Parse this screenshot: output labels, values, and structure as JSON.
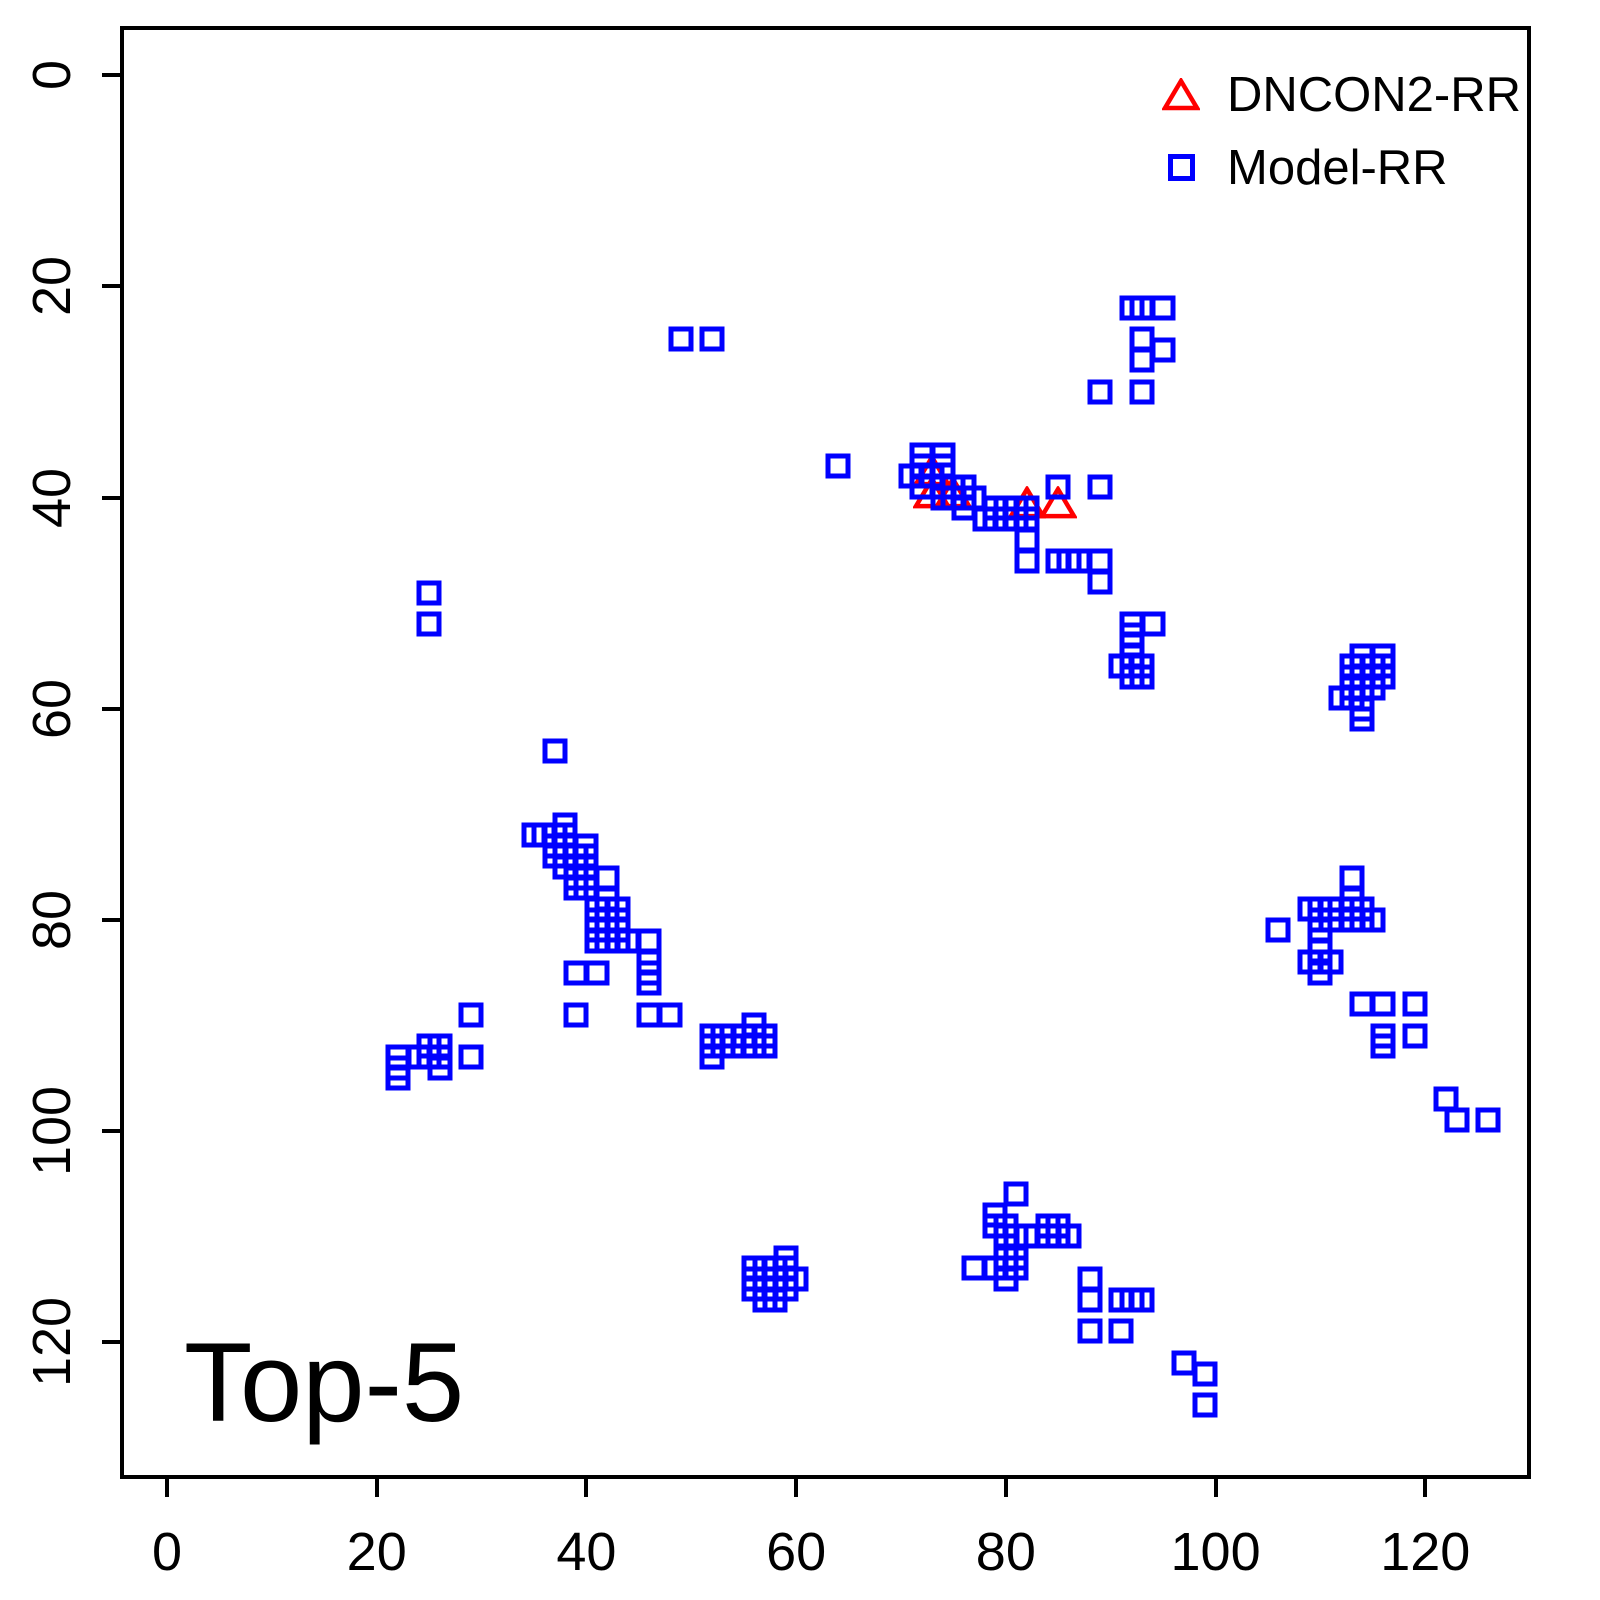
{
  "figure": {
    "background": "#ffffff",
    "axis_color": "#000000"
  },
  "legend": {
    "position": "top-right"
  },
  "chart_data": {
    "type": "scatter",
    "title": "Top-5",
    "xlabel": "",
    "ylabel": "",
    "x_ticks": [
      0,
      20,
      40,
      60,
      80,
      100,
      120
    ],
    "y_ticks": [
      0,
      20,
      40,
      60,
      80,
      100,
      120
    ],
    "xlim": [
      -4.1,
      129.7
    ],
    "ylim_top_to_bottom": [
      -4.3,
      132.6
    ],
    "y_axis_reversed": true,
    "grid": false,
    "legend_position": "top-right",
    "series": [
      {
        "name": "DNCON2-RR",
        "marker": "open-triangle",
        "color": "#ff0000",
        "points": [
          [
            73,
            38
          ],
          [
            73,
            40
          ],
          [
            75,
            40
          ],
          [
            82,
            41
          ],
          [
            85,
            41
          ]
        ]
      },
      {
        "name": "Model-RR",
        "marker": "open-square",
        "color": "#0000ff",
        "points": [
          [
            49,
            25
          ],
          [
            52,
            25
          ],
          [
            92,
            22
          ],
          [
            93,
            22
          ],
          [
            95,
            22
          ],
          [
            93,
            25
          ],
          [
            95,
            26
          ],
          [
            93,
            27
          ],
          [
            89,
            30
          ],
          [
            93,
            30
          ],
          [
            64,
            37
          ],
          [
            25,
            49
          ],
          [
            25,
            52
          ],
          [
            72,
            36
          ],
          [
            74,
            36
          ],
          [
            72,
            37
          ],
          [
            74,
            37
          ],
          [
            71,
            38
          ],
          [
            73,
            38
          ],
          [
            72,
            39
          ],
          [
            74,
            39
          ],
          [
            75,
            39
          ],
          [
            76,
            39
          ],
          [
            74,
            40
          ],
          [
            75,
            40
          ],
          [
            77,
            40
          ],
          [
            76,
            41
          ],
          [
            78,
            42
          ],
          [
            80,
            41
          ],
          [
            80,
            42
          ],
          [
            79,
            41
          ],
          [
            81,
            41
          ],
          [
            82,
            41
          ],
          [
            79,
            42
          ],
          [
            81,
            42
          ],
          [
            82,
            42
          ],
          [
            85,
            39
          ],
          [
            89,
            39
          ],
          [
            82,
            44
          ],
          [
            82,
            46
          ],
          [
            85,
            46
          ],
          [
            86,
            46
          ],
          [
            87,
            46
          ],
          [
            89,
            46
          ],
          [
            89,
            48
          ],
          [
            92,
            52
          ],
          [
            94,
            52
          ],
          [
            92,
            53
          ],
          [
            92,
            54
          ],
          [
            92,
            55
          ],
          [
            91,
            56
          ],
          [
            92,
            56
          ],
          [
            93,
            56
          ],
          [
            92,
            57
          ],
          [
            93,
            57
          ],
          [
            114,
            55
          ],
          [
            116,
            55
          ],
          [
            113,
            56
          ],
          [
            114,
            56
          ],
          [
            115,
            56
          ],
          [
            116,
            56
          ],
          [
            113,
            57
          ],
          [
            114,
            57
          ],
          [
            115,
            57
          ],
          [
            116,
            57
          ],
          [
            113,
            58
          ],
          [
            114,
            58
          ],
          [
            115,
            58
          ],
          [
            112,
            59
          ],
          [
            113,
            59
          ],
          [
            114,
            60
          ],
          [
            114,
            61
          ],
          [
            37,
            64
          ],
          [
            38,
            71
          ],
          [
            35,
            72
          ],
          [
            36,
            72
          ],
          [
            37,
            72
          ],
          [
            38,
            72
          ],
          [
            37,
            73
          ],
          [
            38,
            73
          ],
          [
            40,
            73
          ],
          [
            37,
            74
          ],
          [
            38,
            74
          ],
          [
            39,
            74
          ],
          [
            40,
            74
          ],
          [
            38,
            75
          ],
          [
            39,
            75
          ],
          [
            40,
            75
          ],
          [
            39,
            76
          ],
          [
            40,
            76
          ],
          [
            42,
            76
          ],
          [
            39,
            77
          ],
          [
            40,
            77
          ],
          [
            42,
            78
          ],
          [
            41,
            79
          ],
          [
            42,
            79
          ],
          [
            43,
            79
          ],
          [
            41,
            80
          ],
          [
            42,
            80
          ],
          [
            43,
            80
          ],
          [
            41,
            81
          ],
          [
            42,
            81
          ],
          [
            43,
            81
          ],
          [
            41,
            82
          ],
          [
            42,
            82
          ],
          [
            43,
            82
          ],
          [
            44,
            82
          ],
          [
            46,
            82
          ],
          [
            39,
            85
          ],
          [
            41,
            85
          ],
          [
            46,
            84
          ],
          [
            46,
            85
          ],
          [
            46,
            86
          ],
          [
            39,
            89
          ],
          [
            46,
            89
          ],
          [
            48,
            89
          ],
          [
            29,
            89
          ],
          [
            22,
            93
          ],
          [
            22,
            94
          ],
          [
            22,
            95
          ],
          [
            24,
            93
          ],
          [
            25,
            92
          ],
          [
            26,
            92
          ],
          [
            25,
            93
          ],
          [
            26,
            93
          ],
          [
            26,
            94
          ],
          [
            29,
            93
          ],
          [
            56,
            90
          ],
          [
            52,
            91
          ],
          [
            53,
            91
          ],
          [
            55,
            91
          ],
          [
            56,
            91
          ],
          [
            57,
            91
          ],
          [
            52,
            92
          ],
          [
            53,
            92
          ],
          [
            54,
            92
          ],
          [
            56,
            92
          ],
          [
            57,
            92
          ],
          [
            52,
            93
          ],
          [
            106,
            81
          ],
          [
            109,
            79
          ],
          [
            110,
            79
          ],
          [
            111,
            79
          ],
          [
            110,
            80
          ],
          [
            111,
            80
          ],
          [
            110,
            81
          ],
          [
            113,
            76
          ],
          [
            113,
            78
          ],
          [
            113,
            79
          ],
          [
            114,
            79
          ],
          [
            113,
            80
          ],
          [
            114,
            80
          ],
          [
            115,
            80
          ],
          [
            109,
            84
          ],
          [
            110,
            83
          ],
          [
            110,
            84
          ],
          [
            111,
            84
          ],
          [
            110,
            85
          ],
          [
            114,
            88
          ],
          [
            116,
            88
          ],
          [
            119,
            88
          ],
          [
            116,
            91
          ],
          [
            116,
            92
          ],
          [
            119,
            91
          ],
          [
            122,
            97
          ],
          [
            123,
            99
          ],
          [
            126,
            99
          ],
          [
            59,
            112
          ],
          [
            56,
            113
          ],
          [
            57,
            113
          ],
          [
            58,
            113
          ],
          [
            59,
            113
          ],
          [
            56,
            114
          ],
          [
            57,
            114
          ],
          [
            58,
            114
          ],
          [
            59,
            114
          ],
          [
            60,
            114
          ],
          [
            56,
            115
          ],
          [
            57,
            115
          ],
          [
            58,
            115
          ],
          [
            59,
            115
          ],
          [
            57,
            116
          ],
          [
            58,
            116
          ],
          [
            81,
            106
          ],
          [
            79,
            108
          ],
          [
            79,
            109
          ],
          [
            80,
            109
          ],
          [
            80,
            110
          ],
          [
            81,
            110
          ],
          [
            82,
            110
          ],
          [
            84,
            109
          ],
          [
            85,
            109
          ],
          [
            84,
            110
          ],
          [
            85,
            110
          ],
          [
            86,
            110
          ],
          [
            77,
            113
          ],
          [
            79,
            113
          ],
          [
            80,
            112
          ],
          [
            81,
            112
          ],
          [
            80,
            113
          ],
          [
            81,
            113
          ],
          [
            80,
            114
          ],
          [
            88,
            114
          ],
          [
            88,
            116
          ],
          [
            91,
            116
          ],
          [
            92,
            116
          ],
          [
            93,
            116
          ],
          [
            88,
            119
          ],
          [
            91,
            119
          ],
          [
            97,
            122
          ],
          [
            99,
            123
          ],
          [
            99,
            126
          ]
        ]
      }
    ]
  }
}
